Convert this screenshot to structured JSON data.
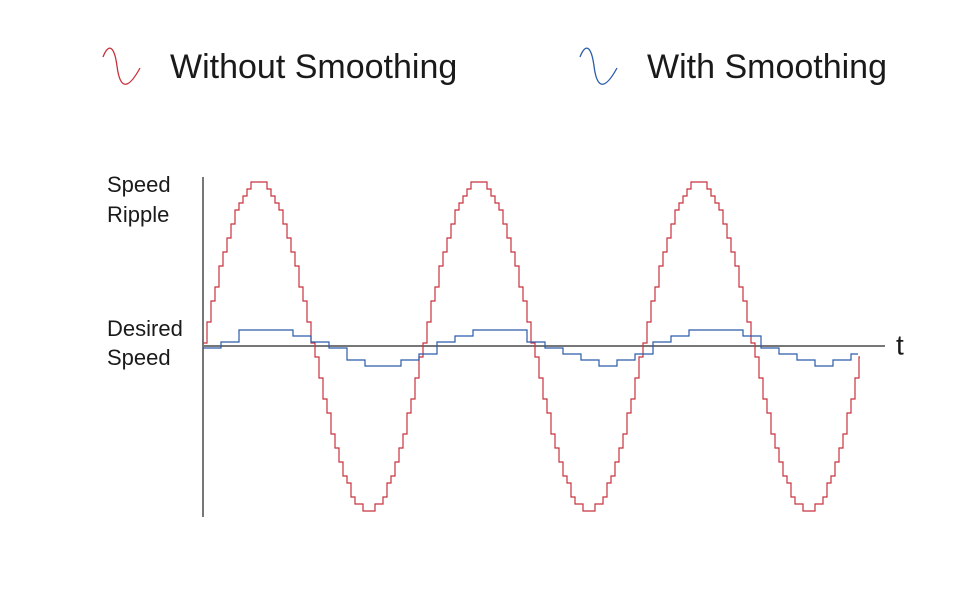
{
  "legend": [
    {
      "label": "Without Smoothing"
    },
    {
      "label": "With Smoothing"
    }
  ],
  "axis": {
    "y_top_label": [
      "Speed",
      "Ripple"
    ],
    "y_mid_label": [
      "Desired",
      "Speed"
    ],
    "x_label": "t"
  }
}
